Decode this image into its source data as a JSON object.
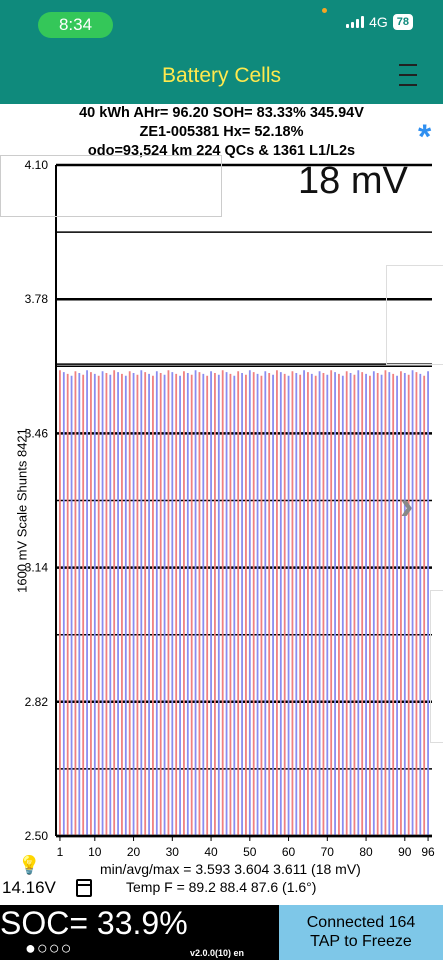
{
  "status": {
    "time": "8:34",
    "network": "4G",
    "battery": "78"
  },
  "header": {
    "title": "Battery Cells"
  },
  "info": {
    "line1": "40 kWh  AHr= 96.20  SOH= 83.33%   345.94V",
    "line2": "ZE1-005381   Hx= 52.18%",
    "line3": "odo=93,524 km 224 QCs & 1361 L1/L2s"
  },
  "chart_data": {
    "type": "bar",
    "title": "18 mV",
    "ylabel": "1600 mV Scale  Shunts 8421",
    "ylim": [
      2.5,
      4.1
    ],
    "yticks": [
      "4.10",
      "3.78",
      "3.46",
      "3.14",
      "2.82",
      "2.50"
    ],
    "xticks": [
      "1",
      "10",
      "20",
      "30",
      "40",
      "50",
      "60",
      "70",
      "80",
      "90",
      "96"
    ],
    "cell_count": 96,
    "cell_min": 3.593,
    "cell_max": 3.611,
    "cell_value": 3.604
  },
  "stats": {
    "line1": "min/avg/max = 3.593 3.604 3.611  (18 mV)",
    "line2": "Temp F = 89.2  88.4  87.6  (1.6°)"
  },
  "voltage": "14.16V",
  "soc": "SOC= 33.9%",
  "page_dots": "●○○○",
  "version": "v2.0.0(10) en",
  "connect": {
    "line1": "Connected 164",
    "line2": "TAP to Freeze"
  },
  "colors": {
    "teal": "#0f8a7c",
    "title": "#ffe94d",
    "bar_red": "#f08080",
    "bar_blue": "#8a8cf0",
    "accent": "#2f8ff0"
  }
}
